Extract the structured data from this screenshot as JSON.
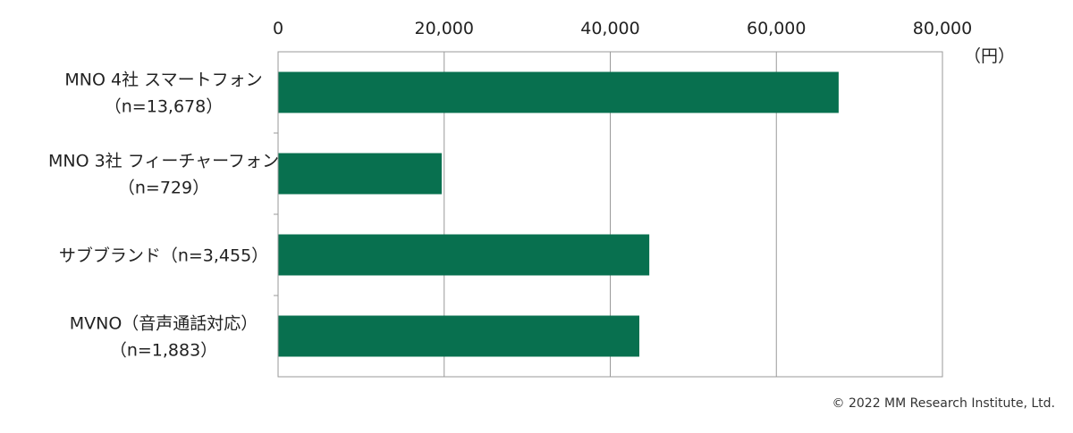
{
  "chart_data": {
    "type": "bar",
    "orientation": "horizontal",
    "categories": [
      [
        "MNO 4社 スマートフォン",
        "（n=13,678）"
      ],
      [
        "MNO 3社 フィーチャーフォン",
        "（n=729）"
      ],
      [
        "サブブランド（n=3,455）"
      ],
      [
        "MVNO（音声通話対応）",
        "（n=1,883）"
      ]
    ],
    "values": [
      67500,
      19700,
      44700,
      43500
    ],
    "xlim": [
      0,
      80000
    ],
    "x_ticks": [
      0,
      20000,
      40000,
      60000,
      80000
    ],
    "x_tick_labels": [
      "0",
      "20,000",
      "40,000",
      "60,000",
      "80,000"
    ],
    "x_axis_position": "top",
    "unit": "（円）",
    "grid": true,
    "bar_color": "#08704f",
    "legend": "none"
  },
  "footer": {
    "copyright": "© 2022 MM Research Institute, Ltd."
  }
}
